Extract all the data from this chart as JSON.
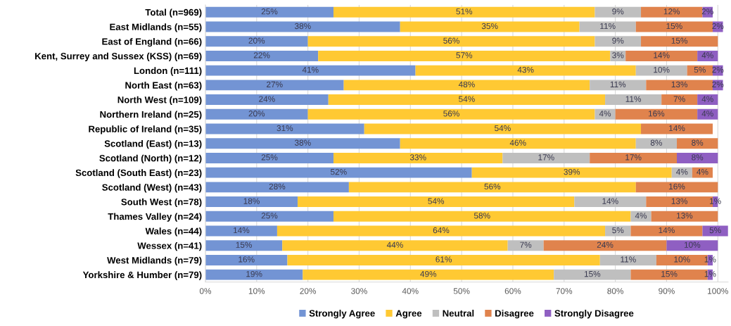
{
  "chart_data": {
    "type": "bar",
    "orientation": "horizontal",
    "stacked": true,
    "grid": "x",
    "legend": "bottom",
    "categories": [
      "Total (n=969)",
      "East Midlands (n=55)",
      "East of England (n=66)",
      "Kent, Surrey and Sussex (KSS) (n=69)",
      "London (n=111)",
      "North East (n=63)",
      "North West (n=109)",
      "Northern Ireland (n=25)",
      "Republic of Ireland (n=35)",
      "Scotland (East) (n=13)",
      "Scotland (North) (n=12)",
      "Scotland (South East) (n=23)",
      "Scotland (West) (n=43)",
      "South West (n=78)",
      "Thames Valley (n=24)",
      "Wales (n=44)",
      "Wessex (n=41)",
      "West Midlands (n=79)",
      "Yorkshire & Humber (n=79)"
    ],
    "xlim": [
      0,
      102
    ],
    "xticks": [
      {
        "value": 0,
        "label": "0%"
      },
      {
        "value": 10,
        "label": "10%"
      },
      {
        "value": 20,
        "label": "20%"
      },
      {
        "value": 30,
        "label": "30%"
      },
      {
        "value": 40,
        "label": "40%"
      },
      {
        "value": 50,
        "label": "50%"
      },
      {
        "value": 60,
        "label": "60%"
      },
      {
        "value": 70,
        "label": "70%"
      },
      {
        "value": 80,
        "label": "80%"
      },
      {
        "value": 90,
        "label": "90%"
      },
      {
        "value": 100,
        "label": "100%"
      }
    ],
    "series": [
      {
        "name": "Strongly Agree",
        "color": "#7394d4",
        "values": [
          25,
          38,
          20,
          22,
          41,
          27,
          24,
          20,
          31,
          38,
          25,
          52,
          28,
          18,
          25,
          14,
          15,
          16,
          19
        ],
        "value_labels": [
          "25%",
          "38%",
          "20%",
          "22%",
          "41%",
          "27%",
          "24%",
          "20%",
          "31%",
          "38%",
          "25%",
          "52%",
          "28%",
          "18%",
          "25%",
          "14%",
          "15%",
          "16%",
          "19%"
        ]
      },
      {
        "name": "Agree",
        "color": "#ffc933",
        "values": [
          51,
          35,
          56,
          57,
          43,
          48,
          54,
          56,
          54,
          46,
          33,
          39,
          56,
          54,
          58,
          64,
          44,
          61,
          49
        ],
        "value_labels": [
          "51%",
          "35%",
          "56%",
          "57%",
          "43%",
          "48%",
          "54%",
          "56%",
          "54%",
          "46%",
          "33%",
          "39%",
          "56%",
          "54%",
          "58%",
          "64%",
          "44%",
          "61%",
          "49%"
        ]
      },
      {
        "name": "Neutral",
        "color": "#bfbfbf",
        "values": [
          9,
          11,
          9,
          3,
          10,
          11,
          11,
          4,
          null,
          8,
          17,
          4,
          null,
          14,
          4,
          5,
          7,
          11,
          15
        ],
        "value_labels": [
          "9%",
          "11%",
          "9%",
          "3%",
          "10%",
          "11%",
          "11%",
          "4%",
          null,
          "8%",
          "17%",
          "4%",
          null,
          "14%",
          "4%",
          "5%",
          "7%",
          "11%",
          "15%"
        ]
      },
      {
        "name": "Disagree",
        "color": "#e0834d",
        "values": [
          12,
          15,
          15,
          14,
          5,
          13,
          7,
          16,
          14,
          8,
          17,
          4,
          16,
          13,
          13,
          14,
          24,
          10,
          15
        ],
        "value_labels": [
          "12%",
          "15%",
          "15%",
          "14%",
          "5%",
          "13%",
          "7%",
          "16%",
          "14%",
          "8%",
          "17%",
          "4%",
          "16%",
          "13%",
          "13%",
          "14%",
          "24%",
          "10%",
          "15%"
        ]
      },
      {
        "name": "Strongly Disagree",
        "color": "#8f5fc2",
        "values": [
          2,
          2,
          null,
          4,
          2,
          2,
          4,
          4,
          null,
          null,
          8,
          null,
          null,
          1,
          null,
          5,
          10,
          1,
          1
        ],
        "value_labels": [
          "2%",
          "2%",
          null,
          "4%",
          "2%",
          "2%",
          "4%",
          "4%",
          null,
          null,
          "8%",
          null,
          null,
          "1%",
          null,
          "5%",
          "10%",
          "1%",
          "1%"
        ]
      }
    ]
  }
}
